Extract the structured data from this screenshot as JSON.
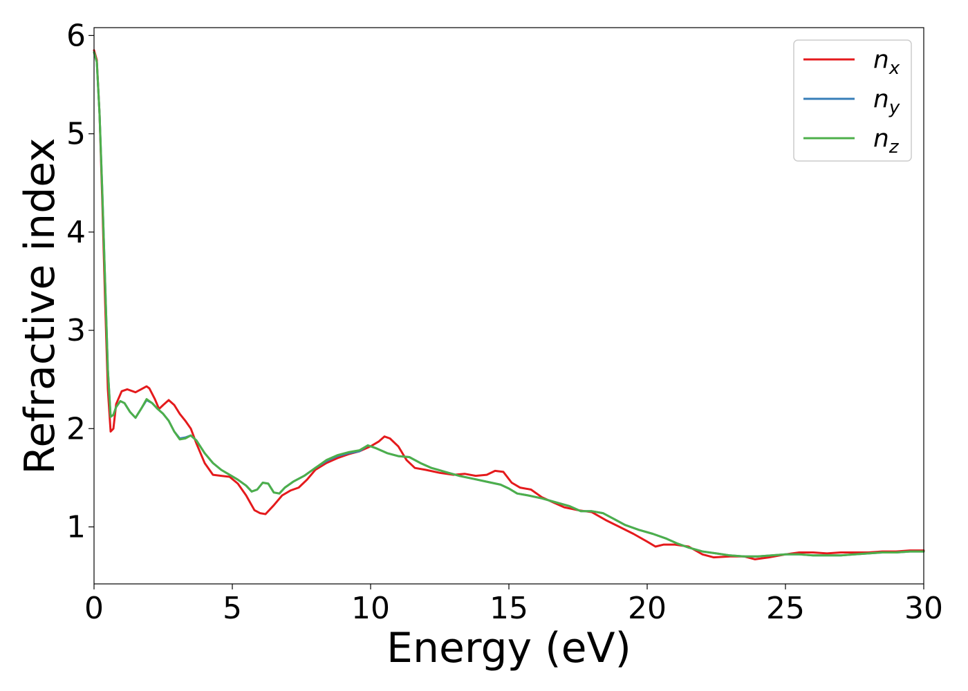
{
  "chart_data": {
    "type": "line",
    "title": "",
    "xlabel": "Energy (eV)",
    "ylabel": "Refractive index",
    "xlim": [
      0,
      30
    ],
    "ylim": [
      0.42,
      6.08
    ],
    "xticks": [
      0,
      5,
      10,
      15,
      20,
      25,
      30
    ],
    "yticks": [
      1,
      2,
      3,
      4,
      5,
      6
    ],
    "grid": false,
    "legend_position": "top-right",
    "series": [
      {
        "name": "n",
        "subscript": "x",
        "color": "#e41a1c",
        "points": [
          [
            0.0,
            5.85
          ],
          [
            0.1,
            5.75
          ],
          [
            0.2,
            5.2
          ],
          [
            0.3,
            4.3
          ],
          [
            0.4,
            3.3
          ],
          [
            0.5,
            2.4
          ],
          [
            0.6,
            1.97
          ],
          [
            0.7,
            2.0
          ],
          [
            0.8,
            2.25
          ],
          [
            1.0,
            2.38
          ],
          [
            1.2,
            2.4
          ],
          [
            1.5,
            2.37
          ],
          [
            1.7,
            2.4
          ],
          [
            1.9,
            2.43
          ],
          [
            2.0,
            2.41
          ],
          [
            2.2,
            2.3
          ],
          [
            2.35,
            2.2
          ],
          [
            2.5,
            2.24
          ],
          [
            2.7,
            2.29
          ],
          [
            2.9,
            2.24
          ],
          [
            3.1,
            2.15
          ],
          [
            3.3,
            2.08
          ],
          [
            3.5,
            2.0
          ],
          [
            3.7,
            1.85
          ],
          [
            4.0,
            1.65
          ],
          [
            4.3,
            1.53
          ],
          [
            4.6,
            1.52
          ],
          [
            4.9,
            1.51
          ],
          [
            5.2,
            1.44
          ],
          [
            5.5,
            1.32
          ],
          [
            5.8,
            1.17
          ],
          [
            6.0,
            1.14
          ],
          [
            6.2,
            1.13
          ],
          [
            6.5,
            1.22
          ],
          [
            6.8,
            1.32
          ],
          [
            7.1,
            1.37
          ],
          [
            7.4,
            1.4
          ],
          [
            7.7,
            1.48
          ],
          [
            8.0,
            1.58
          ],
          [
            8.4,
            1.65
          ],
          [
            8.8,
            1.7
          ],
          [
            9.2,
            1.74
          ],
          [
            9.6,
            1.77
          ],
          [
            10.0,
            1.82
          ],
          [
            10.3,
            1.87
          ],
          [
            10.5,
            1.92
          ],
          [
            10.7,
            1.9
          ],
          [
            11.0,
            1.82
          ],
          [
            11.3,
            1.68
          ],
          [
            11.6,
            1.6
          ],
          [
            12.0,
            1.58
          ],
          [
            12.5,
            1.55
          ],
          [
            13.0,
            1.53
          ],
          [
            13.4,
            1.54
          ],
          [
            13.8,
            1.52
          ],
          [
            14.2,
            1.53
          ],
          [
            14.5,
            1.57
          ],
          [
            14.8,
            1.56
          ],
          [
            15.1,
            1.45
          ],
          [
            15.4,
            1.4
          ],
          [
            15.8,
            1.38
          ],
          [
            16.2,
            1.3
          ],
          [
            16.6,
            1.25
          ],
          [
            17.0,
            1.2
          ],
          [
            17.5,
            1.17
          ],
          [
            18.0,
            1.15
          ],
          [
            18.5,
            1.07
          ],
          [
            19.0,
            1.0
          ],
          [
            19.5,
            0.93
          ],
          [
            20.0,
            0.85
          ],
          [
            20.3,
            0.8
          ],
          [
            20.6,
            0.82
          ],
          [
            21.0,
            0.82
          ],
          [
            21.5,
            0.8
          ],
          [
            22.0,
            0.72
          ],
          [
            22.4,
            0.69
          ],
          [
            23.0,
            0.7
          ],
          [
            23.5,
            0.7
          ],
          [
            23.9,
            0.67
          ],
          [
            24.4,
            0.69
          ],
          [
            25.0,
            0.72
          ],
          [
            25.5,
            0.74
          ],
          [
            26.0,
            0.74
          ],
          [
            26.5,
            0.73
          ],
          [
            27.0,
            0.74
          ],
          [
            27.5,
            0.74
          ],
          [
            28.0,
            0.74
          ],
          [
            28.5,
            0.75
          ],
          [
            29.0,
            0.75
          ],
          [
            29.5,
            0.76
          ],
          [
            30.0,
            0.76
          ]
        ]
      },
      {
        "name": "n",
        "subscript": "y",
        "color": "#377eb8",
        "points": [
          [
            0.0,
            5.83
          ],
          [
            0.1,
            5.73
          ],
          [
            0.2,
            5.2
          ],
          [
            0.3,
            4.4
          ],
          [
            0.4,
            3.5
          ],
          [
            0.5,
            2.6
          ],
          [
            0.6,
            2.12
          ],
          [
            0.7,
            2.14
          ],
          [
            0.8,
            2.22
          ],
          [
            0.95,
            2.28
          ],
          [
            1.1,
            2.26
          ],
          [
            1.3,
            2.17
          ],
          [
            1.5,
            2.11
          ],
          [
            1.7,
            2.2
          ],
          [
            1.9,
            2.29
          ],
          [
            2.1,
            2.26
          ],
          [
            2.3,
            2.2
          ],
          [
            2.5,
            2.15
          ],
          [
            2.7,
            2.08
          ],
          [
            2.9,
            1.97
          ],
          [
            3.1,
            1.9
          ],
          [
            3.3,
            1.91
          ],
          [
            3.5,
            1.93
          ],
          [
            3.7,
            1.88
          ],
          [
            4.0,
            1.75
          ],
          [
            4.3,
            1.65
          ],
          [
            4.6,
            1.58
          ],
          [
            4.9,
            1.53
          ],
          [
            5.2,
            1.48
          ],
          [
            5.5,
            1.42
          ],
          [
            5.7,
            1.36
          ],
          [
            5.9,
            1.38
          ],
          [
            6.1,
            1.45
          ],
          [
            6.3,
            1.44
          ],
          [
            6.5,
            1.35
          ],
          [
            6.7,
            1.34
          ],
          [
            6.9,
            1.4
          ],
          [
            7.2,
            1.46
          ],
          [
            7.6,
            1.52
          ],
          [
            8.0,
            1.6
          ],
          [
            8.4,
            1.67
          ],
          [
            8.8,
            1.72
          ],
          [
            9.2,
            1.75
          ],
          [
            9.6,
            1.77
          ],
          [
            9.9,
            1.83
          ],
          [
            10.2,
            1.8
          ],
          [
            10.6,
            1.75
          ],
          [
            11.0,
            1.72
          ],
          [
            11.4,
            1.71
          ],
          [
            11.8,
            1.65
          ],
          [
            12.2,
            1.6
          ],
          [
            12.7,
            1.56
          ],
          [
            13.2,
            1.52
          ],
          [
            13.7,
            1.49
          ],
          [
            14.2,
            1.46
          ],
          [
            14.7,
            1.43
          ],
          [
            15.0,
            1.39
          ],
          [
            15.3,
            1.34
          ],
          [
            15.7,
            1.32
          ],
          [
            16.2,
            1.29
          ],
          [
            16.7,
            1.25
          ],
          [
            17.2,
            1.21
          ],
          [
            17.6,
            1.16
          ],
          [
            18.0,
            1.16
          ],
          [
            18.4,
            1.14
          ],
          [
            18.8,
            1.08
          ],
          [
            19.2,
            1.02
          ],
          [
            19.7,
            0.97
          ],
          [
            20.2,
            0.93
          ],
          [
            20.7,
            0.88
          ],
          [
            21.1,
            0.83
          ],
          [
            21.5,
            0.79
          ],
          [
            22.0,
            0.75
          ],
          [
            22.5,
            0.73
          ],
          [
            23.0,
            0.71
          ],
          [
            23.5,
            0.7
          ],
          [
            24.0,
            0.7
          ],
          [
            24.5,
            0.71
          ],
          [
            25.0,
            0.72
          ],
          [
            25.5,
            0.72
          ],
          [
            26.0,
            0.71
          ],
          [
            26.5,
            0.71
          ],
          [
            27.0,
            0.71
          ],
          [
            27.5,
            0.72
          ],
          [
            28.0,
            0.73
          ],
          [
            28.5,
            0.74
          ],
          [
            29.0,
            0.74
          ],
          [
            29.5,
            0.75
          ],
          [
            30.0,
            0.75
          ]
        ]
      },
      {
        "name": "n",
        "subscript": "z",
        "color": "#4daf4a",
        "points": [
          [
            0.0,
            5.83
          ],
          [
            0.1,
            5.73
          ],
          [
            0.2,
            5.2
          ],
          [
            0.3,
            4.4
          ],
          [
            0.4,
            3.5
          ],
          [
            0.5,
            2.6
          ],
          [
            0.6,
            2.12
          ],
          [
            0.7,
            2.14
          ],
          [
            0.8,
            2.22
          ],
          [
            0.95,
            2.28
          ],
          [
            1.1,
            2.26
          ],
          [
            1.3,
            2.17
          ],
          [
            1.5,
            2.11
          ],
          [
            1.7,
            2.2
          ],
          [
            1.9,
            2.3
          ],
          [
            2.1,
            2.26
          ],
          [
            2.3,
            2.2
          ],
          [
            2.5,
            2.15
          ],
          [
            2.7,
            2.08
          ],
          [
            2.9,
            1.97
          ],
          [
            3.1,
            1.89
          ],
          [
            3.3,
            1.9
          ],
          [
            3.5,
            1.93
          ],
          [
            3.7,
            1.88
          ],
          [
            4.0,
            1.75
          ],
          [
            4.3,
            1.65
          ],
          [
            4.6,
            1.58
          ],
          [
            4.9,
            1.53
          ],
          [
            5.2,
            1.48
          ],
          [
            5.5,
            1.42
          ],
          [
            5.7,
            1.36
          ],
          [
            5.9,
            1.38
          ],
          [
            6.1,
            1.45
          ],
          [
            6.3,
            1.44
          ],
          [
            6.5,
            1.35
          ],
          [
            6.7,
            1.34
          ],
          [
            6.9,
            1.4
          ],
          [
            7.2,
            1.46
          ],
          [
            7.6,
            1.52
          ],
          [
            8.0,
            1.6
          ],
          [
            8.4,
            1.68
          ],
          [
            8.8,
            1.73
          ],
          [
            9.2,
            1.76
          ],
          [
            9.6,
            1.78
          ],
          [
            9.9,
            1.83
          ],
          [
            10.2,
            1.8
          ],
          [
            10.6,
            1.75
          ],
          [
            11.0,
            1.72
          ],
          [
            11.4,
            1.71
          ],
          [
            11.8,
            1.65
          ],
          [
            12.2,
            1.6
          ],
          [
            12.7,
            1.56
          ],
          [
            13.2,
            1.52
          ],
          [
            13.7,
            1.49
          ],
          [
            14.2,
            1.46
          ],
          [
            14.7,
            1.43
          ],
          [
            15.0,
            1.39
          ],
          [
            15.3,
            1.34
          ],
          [
            15.7,
            1.32
          ],
          [
            16.2,
            1.29
          ],
          [
            16.7,
            1.25
          ],
          [
            17.2,
            1.21
          ],
          [
            17.6,
            1.16
          ],
          [
            18.0,
            1.16
          ],
          [
            18.4,
            1.14
          ],
          [
            18.8,
            1.08
          ],
          [
            19.2,
            1.02
          ],
          [
            19.7,
            0.97
          ],
          [
            20.2,
            0.93
          ],
          [
            20.7,
            0.88
          ],
          [
            21.1,
            0.83
          ],
          [
            21.5,
            0.79
          ],
          [
            22.0,
            0.75
          ],
          [
            22.5,
            0.73
          ],
          [
            23.0,
            0.71
          ],
          [
            23.5,
            0.7
          ],
          [
            24.0,
            0.7
          ],
          [
            24.5,
            0.71
          ],
          [
            25.0,
            0.72
          ],
          [
            25.5,
            0.72
          ],
          [
            26.0,
            0.71
          ],
          [
            26.5,
            0.71
          ],
          [
            27.0,
            0.71
          ],
          [
            27.5,
            0.72
          ],
          [
            28.0,
            0.73
          ],
          [
            28.5,
            0.74
          ],
          [
            29.0,
            0.74
          ],
          [
            29.5,
            0.75
          ],
          [
            30.0,
            0.75
          ]
        ]
      }
    ]
  }
}
